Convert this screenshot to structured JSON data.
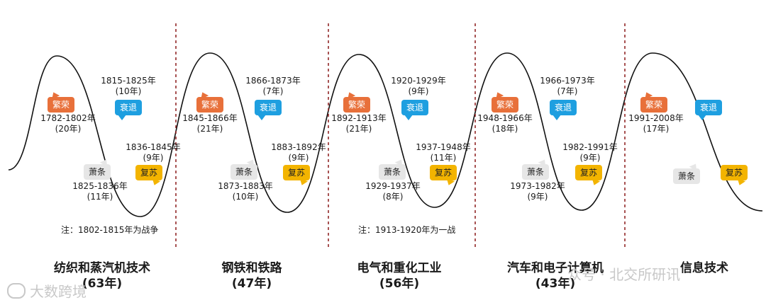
{
  "cycles": [
    {
      "era_name": "纺织和蒸汽机技术",
      "era_years": "(63年)",
      "boom_tag": "繁荣",
      "boom_period": "1782-1802年",
      "boom_years": "(20年)",
      "recession_tag": "衰退",
      "recession_period": "1815-1825年",
      "recession_years": "(10年)",
      "depression_tag": "萧条",
      "depression_period": "1825-1836年",
      "depression_years": "(11年)",
      "recovery_tag": "复苏",
      "recovery_period": "1836-1845年",
      "recovery_years": "(9年)",
      "note": "注：1802-1815年为战争"
    },
    {
      "era_name": "钢铁和铁路",
      "era_years": "(47年)",
      "boom_tag": "繁荣",
      "boom_period": "1845-1866年",
      "boom_years": "(21年)",
      "recession_tag": "衰退",
      "recession_period": "1866-1873年",
      "recession_years": "(7年)",
      "depression_tag": "萧条",
      "depression_period": "1873-1883年",
      "depression_years": "(10年)",
      "recovery_tag": "复苏",
      "recovery_period": "1883-1892年",
      "recovery_years": "(9年)",
      "note": ""
    },
    {
      "era_name": "电气和重化工业",
      "era_years": "(56年)",
      "boom_tag": "繁荣",
      "boom_period": "1892-1913年",
      "boom_years": "(21年)",
      "recession_tag": "衰退",
      "recession_period": "1920-1929年",
      "recession_years": "(9年)",
      "depression_tag": "萧条",
      "depression_period": "1929-1937年",
      "depression_years": "(8年)",
      "recovery_tag": "复苏",
      "recovery_period": "1937-1948年",
      "recovery_years": "(11年)",
      "note": "注：1913-1920年为一战"
    },
    {
      "era_name": "汽车和电子计算机",
      "era_years": "(43年)",
      "boom_tag": "繁荣",
      "boom_period": "1948-1966年",
      "boom_years": "(18年)",
      "recession_tag": "衰退",
      "recession_period": "1966-1973年",
      "recession_years": "(7年)",
      "depression_tag": "萧条",
      "depression_period": "1973-1982年",
      "depression_years": "(9年)",
      "recovery_tag": "复苏",
      "recovery_period": "1982-1991年",
      "recovery_years": "(9年)",
      "note": ""
    },
    {
      "era_name": "信息技术",
      "era_years": "",
      "boom_tag": "繁荣",
      "boom_period": "1991-2008年",
      "boom_years": "(17年)",
      "recession_tag": "衰退",
      "recession_period": "",
      "recession_years": "",
      "depression_tag": "萧条",
      "depression_period": "",
      "depression_years": "",
      "recovery_tag": "复苏",
      "recovery_period": "",
      "recovery_years": "",
      "note": ""
    }
  ],
  "watermark_left": "大数跨境",
  "watermark_right": "众号 · 北交所研讯",
  "colors": {
    "boom": "#e8703a",
    "recession": "#1e9fe0",
    "depression": "#e6e6e6",
    "recovery": "#f3b400",
    "divider": "#8b1a1a",
    "curve": "#111111"
  }
}
